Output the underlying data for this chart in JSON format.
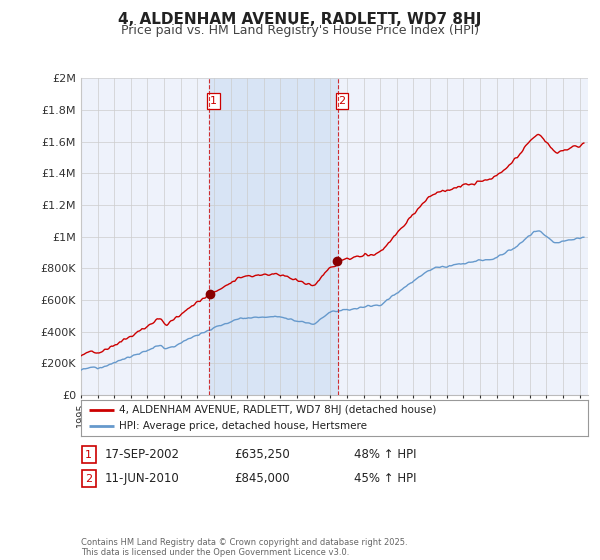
{
  "title": "4, ALDENHAM AVENUE, RADLETT, WD7 8HJ",
  "subtitle": "Price paid vs. HM Land Registry's House Price Index (HPI)",
  "legend_line1": "4, ALDENHAM AVENUE, RADLETT, WD7 8HJ (detached house)",
  "legend_line2": "HPI: Average price, detached house, Hertsmere",
  "transaction1_date": "17-SEP-2002",
  "transaction1_price": "£635,250",
  "transaction1_hpi": "48% ↑ HPI",
  "transaction2_date": "11-JUN-2010",
  "transaction2_price": "£845,000",
  "transaction2_hpi": "45% ↑ HPI",
  "copyright": "Contains HM Land Registry data © Crown copyright and database right 2025.\nThis data is licensed under the Open Government Licence v3.0.",
  "property_color": "#cc0000",
  "hpi_color": "#6699cc",
  "dot_color": "#880000",
  "background_color": "#ffffff",
  "plot_bg_color": "#eef2fb",
  "grid_color": "#cccccc",
  "shade_color": "#d8e4f5",
  "ylim": [
    0,
    2000000
  ],
  "yticks": [
    0,
    200000,
    400000,
    600000,
    800000,
    1000000,
    1200000,
    1400000,
    1600000,
    1800000,
    2000000
  ],
  "ytick_labels": [
    "£0",
    "£200K",
    "£400K",
    "£600K",
    "£800K",
    "£1M",
    "£1.2M",
    "£1.4M",
    "£1.6M",
    "£1.8M",
    "£2M"
  ],
  "vline1_x": 2002.72,
  "vline2_x": 2010.44,
  "xmin": 1995.0,
  "xmax": 2025.5
}
